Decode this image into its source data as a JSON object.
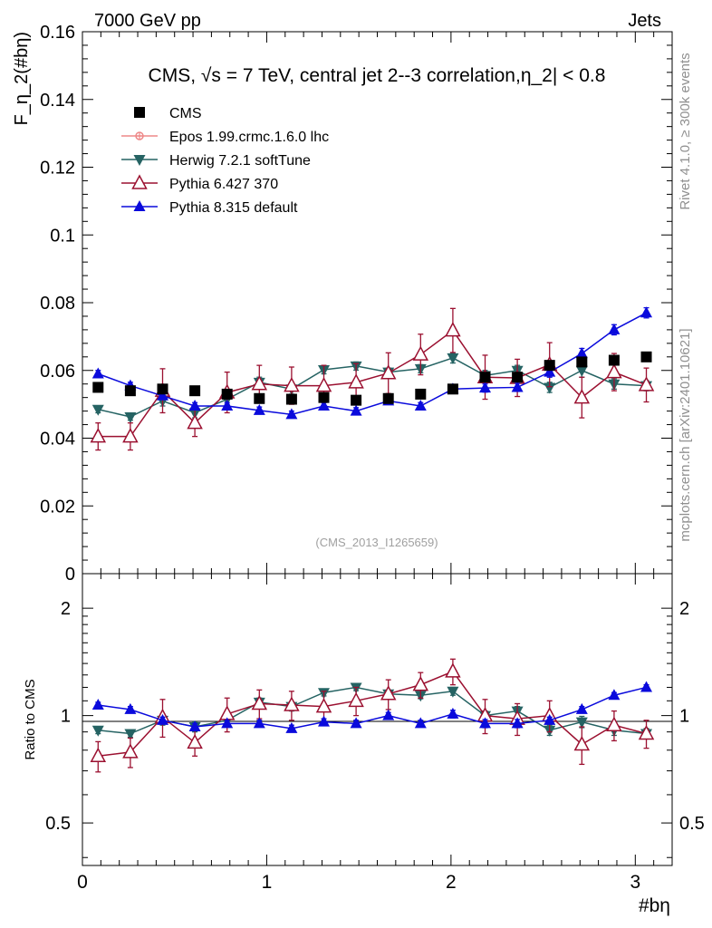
{
  "header": {
    "left": "7000 GeV pp",
    "right": "Jets"
  },
  "side_labels": {
    "rivet": "Rivet 4.1.0, ≥ 300k events",
    "mcplots": "mcplots.cern.ch [arXiv:2401.10621]"
  },
  "chart_data": {
    "type": "scatter",
    "title": "CMS, √s = 7 TeV, central jet 2--3 correlation,η_2| < 0.8",
    "watermark": "(CMS_2013_I1265659)",
    "xlabel": "#bη",
    "ylabel": "F_η_2(#bη)",
    "ratio_ylabel": "Ratio to CMS",
    "xlim": [
      0,
      3.2
    ],
    "ylim": [
      0,
      0.16
    ],
    "ratio_ylim": [
      0.38,
      2.5
    ],
    "x_ticks": [
      "0",
      "1",
      "2",
      "3"
    ],
    "y_ticks": [
      "0",
      "0.02",
      "0.04",
      "0.06",
      "0.08",
      "0.1",
      "0.12",
      "0.14",
      "0.16"
    ],
    "ratio_ticks": [
      "0.5",
      "1",
      "2"
    ],
    "x": [
      0.085,
      0.26,
      0.435,
      0.61,
      0.785,
      0.96,
      1.135,
      1.31,
      1.485,
      1.66,
      1.835,
      2.01,
      2.185,
      2.36,
      2.535,
      2.71,
      2.885,
      3.06
    ],
    "series": [
      {
        "name": "CMS",
        "color": "#000000",
        "marker": "square",
        "values": [
          0.055,
          0.054,
          0.0545,
          0.054,
          0.053,
          0.0517,
          0.0515,
          0.052,
          0.0512,
          0.0517,
          0.053,
          0.0545,
          0.058,
          0.058,
          0.0615,
          0.0625,
          0.063,
          0.064
        ],
        "errors": [
          0.001,
          0.001,
          0.001,
          0.001,
          0.001,
          0.001,
          0.001,
          0.001,
          0.001,
          0.001,
          0.001,
          0.001,
          0.001,
          0.001,
          0.001,
          0.001,
          0.001,
          0.001
        ],
        "ratio": null
      },
      {
        "name": "Epos 1.99.crmc.1.6.0 lhc",
        "color": "#ee8888",
        "marker": "cross",
        "values": null,
        "errors": null,
        "ratio": null
      },
      {
        "name": "Herwig 7.2.1 softTune",
        "color": "#256363",
        "marker": "triangle-down",
        "values": [
          0.0485,
          0.0463,
          0.051,
          0.0475,
          0.0515,
          0.0565,
          0.0545,
          0.0602,
          0.0613,
          0.0595,
          0.0605,
          0.0637,
          0.0585,
          0.06,
          0.055,
          0.06,
          0.056,
          0.0555
        ],
        "errors": [
          0.001,
          0.001,
          0.0015,
          0.0015,
          0.0015,
          0.0015,
          0.0015,
          0.0012,
          0.0012,
          0.0012,
          0.0012,
          0.0015,
          0.0015,
          0.0015,
          0.0015,
          0.002,
          0.0015,
          0.0015
        ],
        "ratio": [
          0.91,
          0.89,
          0.97,
          0.93,
          0.97,
          1.09,
          1.06,
          1.16,
          1.2,
          1.15,
          1.14,
          1.17,
          1.0,
          1.03,
          0.91,
          0.96,
          0.91,
          0.89
        ],
        "ratio_errors": [
          0.02,
          0.02,
          0.03,
          0.03,
          0.03,
          0.03,
          0.03,
          0.025,
          0.025,
          0.025,
          0.025,
          0.03,
          0.03,
          0.03,
          0.03,
          0.035,
          0.03,
          0.03
        ]
      },
      {
        "name": "Pythia 6.427 370",
        "color": "#9b1030",
        "marker": "triangle-open",
        "values": [
          0.0405,
          0.0405,
          0.054,
          0.0445,
          0.0535,
          0.056,
          0.0555,
          0.0555,
          0.0565,
          0.0592,
          0.0647,
          0.0718,
          0.058,
          0.0578,
          0.0617,
          0.052,
          0.0595,
          0.0557
        ],
        "errors": [
          0.004,
          0.004,
          0.0065,
          0.004,
          0.006,
          0.0055,
          0.0055,
          0.006,
          0.0055,
          0.006,
          0.006,
          0.0065,
          0.0065,
          0.0055,
          0.0065,
          0.006,
          0.0055,
          0.005
        ],
        "ratio": [
          0.77,
          0.79,
          0.99,
          0.84,
          1.01,
          1.08,
          1.07,
          1.06,
          1.1,
          1.15,
          1.22,
          1.33,
          1.0,
          0.98,
          1.0,
          0.83,
          0.94,
          0.89
        ],
        "ratio_errors": [
          0.075,
          0.075,
          0.12,
          0.07,
          0.11,
          0.1,
          0.1,
          0.11,
          0.1,
          0.11,
          0.1,
          0.11,
          0.11,
          0.1,
          0.1,
          0.1,
          0.09,
          0.08
        ]
      },
      {
        "name": "Pythia 8.315 default",
        "color": "#0a0adc",
        "marker": "triangle-up",
        "values": [
          0.059,
          0.0555,
          0.0525,
          0.0495,
          0.0495,
          0.0482,
          0.047,
          0.0495,
          0.048,
          0.051,
          0.0495,
          0.0545,
          0.0548,
          0.055,
          0.0595,
          0.065,
          0.072,
          0.077
        ],
        "errors": [
          0.001,
          0.001,
          0.001,
          0.001,
          0.001,
          0.001,
          0.001,
          0.001,
          0.001,
          0.001,
          0.001,
          0.0012,
          0.0012,
          0.0012,
          0.0015,
          0.0015,
          0.0015,
          0.0015
        ],
        "ratio": [
          1.07,
          1.04,
          0.97,
          0.93,
          0.95,
          0.95,
          0.92,
          0.96,
          0.95,
          1.0,
          0.95,
          1.01,
          0.95,
          0.95,
          0.97,
          1.04,
          1.14,
          1.2
        ],
        "ratio_errors": [
          0.02,
          0.02,
          0.02,
          0.02,
          0.02,
          0.02,
          0.02,
          0.02,
          0.02,
          0.02,
          0.02,
          0.025,
          0.025,
          0.025,
          0.02,
          0.02,
          0.02,
          0.02
        ]
      }
    ]
  }
}
